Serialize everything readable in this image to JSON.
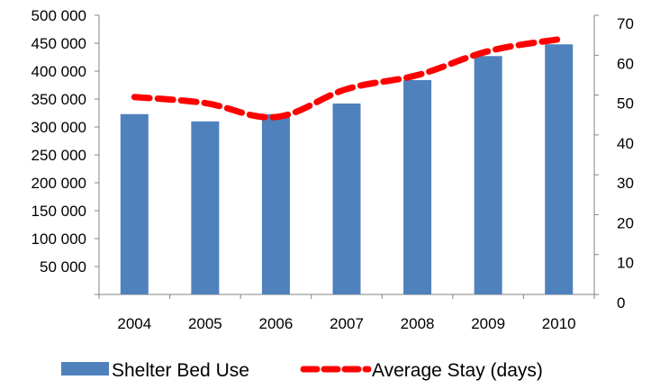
{
  "chart_data": {
    "type": "bar",
    "categories": [
      "2004",
      "2005",
      "2006",
      "2007",
      "2008",
      "2009",
      "2010"
    ],
    "series": [
      {
        "name": "Shelter Bed Use",
        "type": "bar",
        "axis": "left",
        "color": "#4F81BD",
        "values": [
          323000,
          310000,
          323000,
          342000,
          384000,
          427000,
          448000
        ]
      },
      {
        "name": "Average Stay (days)",
        "type": "line",
        "axis": "right",
        "color": "#FF0000",
        "line_style": "dashed",
        "values": [
          49.5,
          48,
          44.5,
          51.5,
          55,
          61,
          64
        ]
      }
    ],
    "y_left": {
      "ylim": [
        0,
        500000
      ],
      "ticks": [
        0,
        50000,
        100000,
        150000,
        200000,
        250000,
        300000,
        350000,
        400000,
        450000,
        500000
      ],
      "tick_labels": [
        "",
        "50 000",
        "100 000",
        "150 000",
        "200 000",
        "250 000",
        "300 000",
        "350 000",
        "400 000",
        "450 000",
        "500 000"
      ]
    },
    "y_right": {
      "ylim": [
        0,
        70
      ],
      "ticks": [
        0,
        10,
        20,
        30,
        40,
        50,
        60,
        70
      ],
      "tick_labels": [
        "0",
        "10",
        "20",
        "30",
        "40",
        "50",
        "60",
        "70"
      ]
    },
    "grid": false,
    "legend_position": "bottom",
    "title": "",
    "xlabel": "",
    "ylabel": ""
  }
}
